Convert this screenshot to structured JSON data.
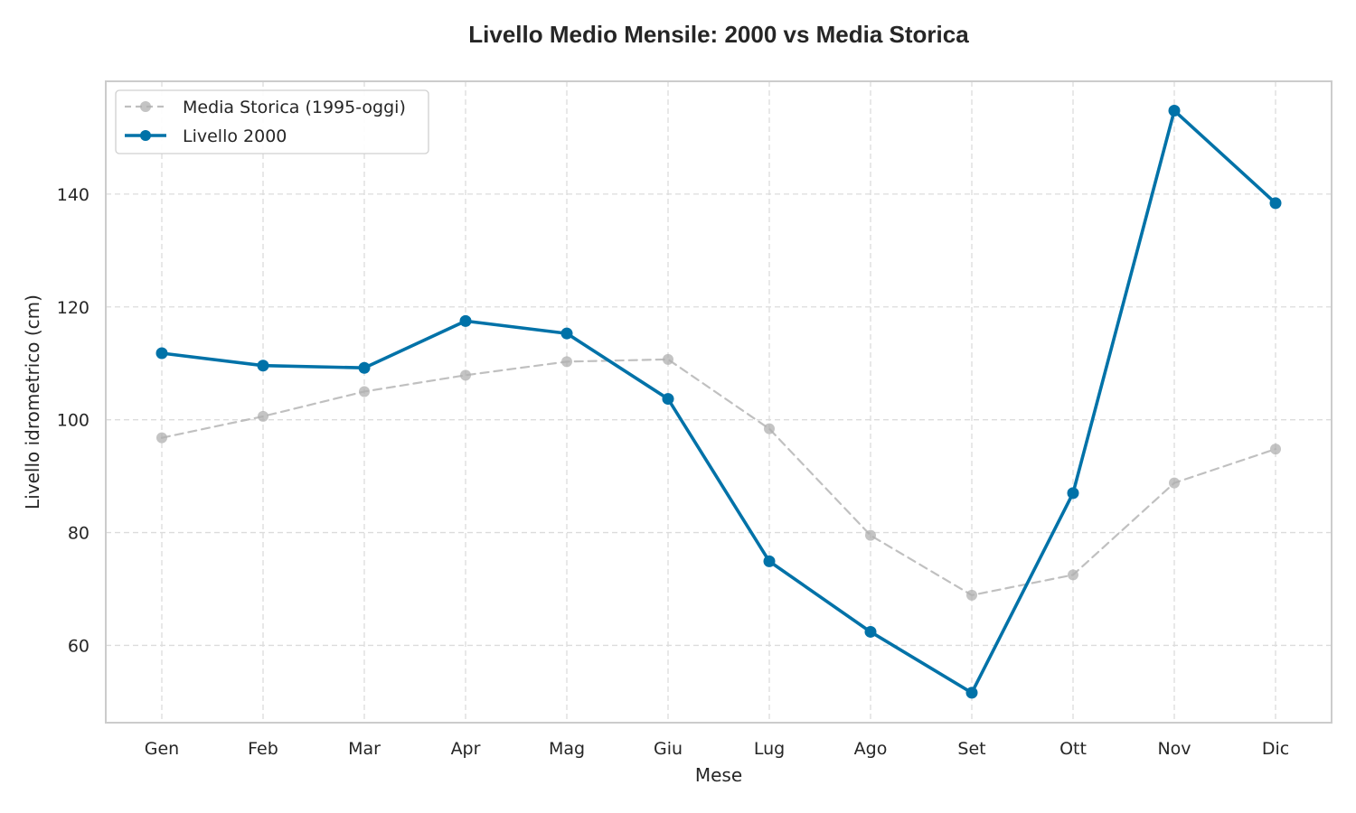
{
  "chart_data": {
    "type": "line",
    "title": "Livello Medio Mensile: 2000 vs Media Storica",
    "xlabel": "Mese",
    "ylabel": "Livello idrometrico (cm)",
    "categories": [
      "Gen",
      "Feb",
      "Mar",
      "Apr",
      "Mag",
      "Giu",
      "Lug",
      "Ago",
      "Set",
      "Ott",
      "Nov",
      "Dic"
    ],
    "ylim": [
      46.3,
      160.0
    ],
    "yticks": [
      60,
      80,
      100,
      120,
      140
    ],
    "grid": true,
    "legend_position": "top-left",
    "series": [
      {
        "name": "Media Storica (1995-oggi)",
        "values": [
          96.8,
          100.6,
          105.0,
          107.9,
          110.3,
          110.7,
          98.4,
          79.5,
          68.9,
          72.5,
          88.8,
          94.8
        ],
        "color": "#b0b0b0",
        "style": "dashed"
      },
      {
        "name": "Livello 2000",
        "values": [
          111.8,
          109.6,
          109.2,
          117.5,
          115.3,
          103.7,
          74.9,
          62.4,
          51.6,
          87.0,
          154.8,
          138.4
        ],
        "color": "#0072a8",
        "style": "solid"
      }
    ]
  }
}
